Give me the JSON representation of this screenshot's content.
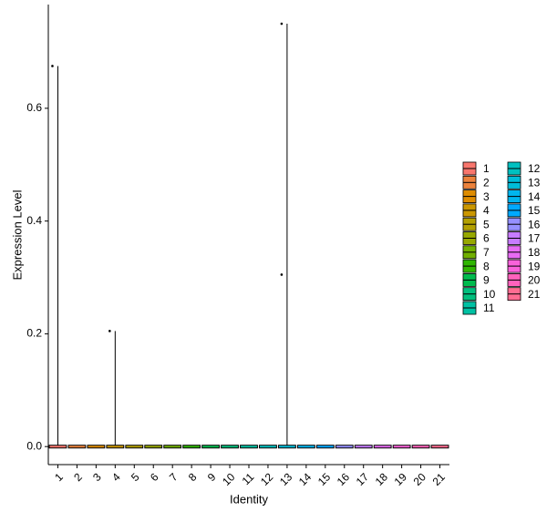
{
  "chart_data": {
    "type": "violin",
    "xlabel": "Identity",
    "ylabel": "Expression Level",
    "categories": [
      "1",
      "2",
      "3",
      "4",
      "5",
      "6",
      "7",
      "8",
      "9",
      "10",
      "11",
      "12",
      "13",
      "14",
      "15",
      "16",
      "17",
      "18",
      "19",
      "20",
      "21"
    ],
    "values": [
      0.675,
      0,
      0,
      0.205,
      0,
      0,
      0,
      0,
      0,
      0,
      0,
      0,
      0.75,
      0,
      0,
      0,
      0,
      0,
      0,
      0,
      0
    ],
    "colors": [
      "#F8766D",
      "#EC823C",
      "#DE8C00",
      "#CB9700",
      "#B3A000",
      "#97A800",
      "#71B000",
      "#2FB600",
      "#00BB4E",
      "#00BF7D",
      "#00C1A3",
      "#00C0C0",
      "#00BCD8",
      "#00B5EE",
      "#00A9FF",
      "#9590FF",
      "#C77CFF",
      "#E76BF3",
      "#FA62DB",
      "#FF62BC",
      "#FF6C91"
    ],
    "points": {
      "categories": [
        "1",
        "4",
        "13",
        "13"
      ],
      "values": [
        0.675,
        0.205,
        0.75,
        0.305
      ]
    },
    "ylim": [
      -0.032,
      0.784
    ],
    "yticks": [
      {
        "value": 0,
        "label": "0.0"
      },
      0.2,
      0.4,
      0.6
    ],
    "legend": "right"
  }
}
